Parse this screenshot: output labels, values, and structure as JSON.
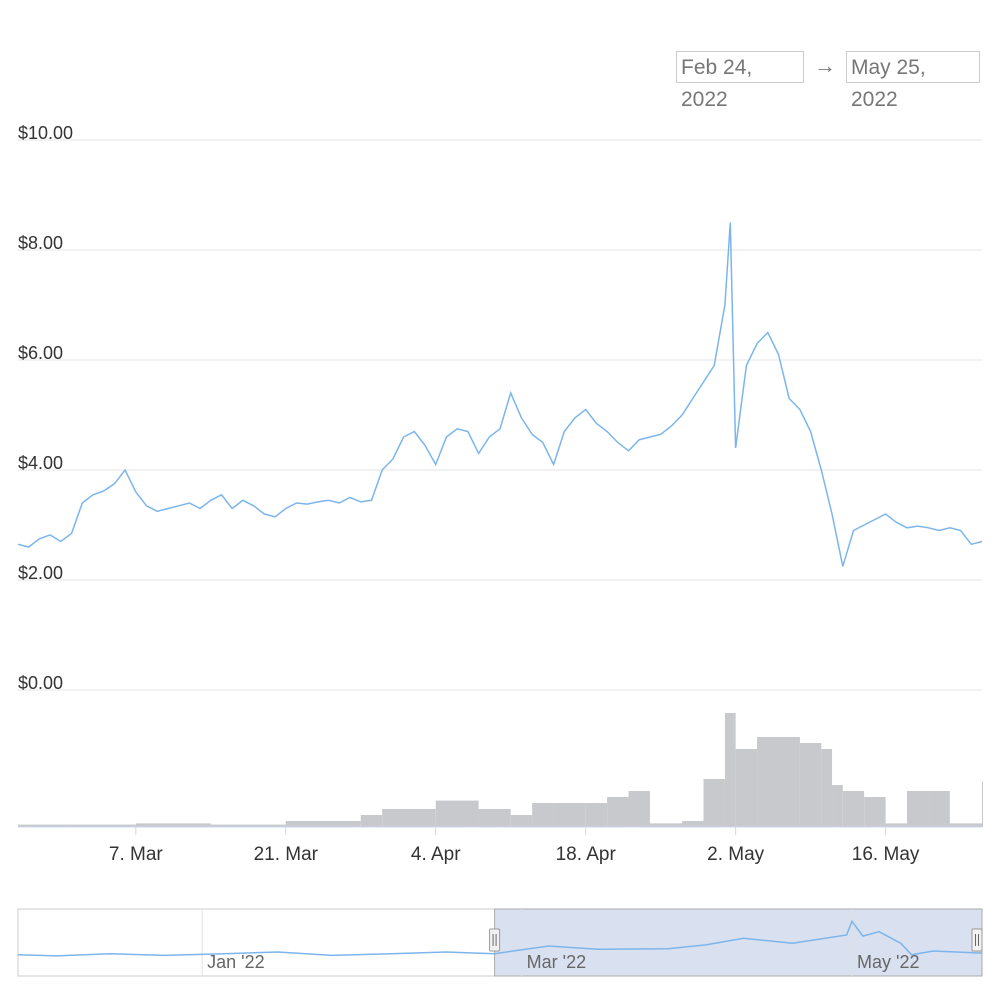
{
  "range": {
    "from": "Feb 24, 2022",
    "arrow": "→",
    "to": "May 25, 2022"
  },
  "colors": {
    "line": "#7cb5ec",
    "volume": "#c8c9cc",
    "grid": "#e6e6e6",
    "navigator_fill": "#ccd6eb"
  },
  "chart_data": {
    "type": "line",
    "title": "",
    "xlabel": "",
    "ylabel": "",
    "ylim": [
      0,
      10
    ],
    "y_ticks": [
      {
        "value": 10,
        "label": "$10.00"
      },
      {
        "value": 8,
        "label": "$8.00"
      },
      {
        "value": 6,
        "label": "$6.00"
      },
      {
        "value": 4,
        "label": "$4.00"
      },
      {
        "value": 2,
        "label": "$2.00"
      },
      {
        "value": 0,
        "label": "$0.00"
      }
    ],
    "x_range": [
      "2022-02-24",
      "2022-05-25"
    ],
    "x_ticks": [
      {
        "date": "2022-03-07",
        "label": "7. Mar"
      },
      {
        "date": "2022-03-21",
        "label": "21. Mar"
      },
      {
        "date": "2022-04-04",
        "label": "4. Apr"
      },
      {
        "date": "2022-04-18",
        "label": "18. Apr"
      },
      {
        "date": "2022-05-02",
        "label": "2. May"
      },
      {
        "date": "2022-05-16",
        "label": "16. May"
      }
    ],
    "series": [
      {
        "type": "line",
        "points": [
          [
            "2022-02-24",
            2.65
          ],
          [
            "2022-02-25",
            2.6
          ],
          [
            "2022-02-26",
            2.75
          ],
          [
            "2022-02-27",
            2.82
          ],
          [
            "2022-02-28",
            2.7
          ],
          [
            "2022-03-01",
            2.85
          ],
          [
            "2022-03-02",
            3.4
          ],
          [
            "2022-03-03",
            3.55
          ],
          [
            "2022-03-04",
            3.62
          ],
          [
            "2022-03-05",
            3.75
          ],
          [
            "2022-03-06",
            4.0
          ],
          [
            "2022-03-07",
            3.6
          ],
          [
            "2022-03-08",
            3.35
          ],
          [
            "2022-03-09",
            3.25
          ],
          [
            "2022-03-10",
            3.3
          ],
          [
            "2022-03-11",
            3.35
          ],
          [
            "2022-03-12",
            3.4
          ],
          [
            "2022-03-13",
            3.3
          ],
          [
            "2022-03-14",
            3.45
          ],
          [
            "2022-03-15",
            3.55
          ],
          [
            "2022-03-16",
            3.3
          ],
          [
            "2022-03-17",
            3.45
          ],
          [
            "2022-03-18",
            3.35
          ],
          [
            "2022-03-19",
            3.2
          ],
          [
            "2022-03-20",
            3.15
          ],
          [
            "2022-03-21",
            3.3
          ],
          [
            "2022-03-22",
            3.4
          ],
          [
            "2022-03-23",
            3.38
          ],
          [
            "2022-03-24",
            3.42
          ],
          [
            "2022-03-25",
            3.45
          ],
          [
            "2022-03-26",
            3.4
          ],
          [
            "2022-03-27",
            3.5
          ],
          [
            "2022-03-28",
            3.42
          ],
          [
            "2022-03-29",
            3.45
          ],
          [
            "2022-03-30",
            4.0
          ],
          [
            "2022-03-31",
            4.2
          ],
          [
            "2022-04-01",
            4.6
          ],
          [
            "2022-04-02",
            4.7
          ],
          [
            "2022-04-03",
            4.45
          ],
          [
            "2022-04-04",
            4.1
          ],
          [
            "2022-04-05",
            4.6
          ],
          [
            "2022-04-06",
            4.75
          ],
          [
            "2022-04-07",
            4.7
          ],
          [
            "2022-04-08",
            4.3
          ],
          [
            "2022-04-09",
            4.6
          ],
          [
            "2022-04-10",
            4.75
          ],
          [
            "2022-04-11",
            5.4
          ],
          [
            "2022-04-12",
            4.95
          ],
          [
            "2022-04-13",
            4.65
          ],
          [
            "2022-04-14",
            4.5
          ],
          [
            "2022-04-15",
            4.1
          ],
          [
            "2022-04-16",
            4.7
          ],
          [
            "2022-04-17",
            4.95
          ],
          [
            "2022-04-18",
            5.1
          ],
          [
            "2022-04-19",
            4.85
          ],
          [
            "2022-04-20",
            4.7
          ],
          [
            "2022-04-21",
            4.5
          ],
          [
            "2022-04-22",
            4.35
          ],
          [
            "2022-04-23",
            4.55
          ],
          [
            "2022-04-24",
            4.6
          ],
          [
            "2022-04-25",
            4.65
          ],
          [
            "2022-04-26",
            4.8
          ],
          [
            "2022-04-27",
            5.0
          ],
          [
            "2022-04-28",
            5.3
          ],
          [
            "2022-04-29",
            5.6
          ],
          [
            "2022-04-30",
            5.9
          ],
          [
            "2022-05-01",
            7.0
          ],
          [
            "2022-05-01T12:00",
            8.5
          ],
          [
            "2022-05-02",
            4.4
          ],
          [
            "2022-05-03",
            5.9
          ],
          [
            "2022-05-04",
            6.3
          ],
          [
            "2022-05-05",
            6.5
          ],
          [
            "2022-05-06",
            6.1
          ],
          [
            "2022-05-07",
            5.3
          ],
          [
            "2022-05-08",
            5.1
          ],
          [
            "2022-05-09",
            4.7
          ],
          [
            "2022-05-10",
            4.0
          ],
          [
            "2022-05-11",
            3.2
          ],
          [
            "2022-05-12",
            2.25
          ],
          [
            "2022-05-13",
            2.9
          ],
          [
            "2022-05-14",
            3.0
          ],
          [
            "2022-05-15",
            3.1
          ],
          [
            "2022-05-16",
            3.2
          ],
          [
            "2022-05-17",
            3.05
          ],
          [
            "2022-05-18",
            2.95
          ],
          [
            "2022-05-19",
            2.98
          ],
          [
            "2022-05-20",
            2.95
          ],
          [
            "2022-05-21",
            2.9
          ],
          [
            "2022-05-22",
            2.95
          ],
          [
            "2022-05-23",
            2.9
          ],
          [
            "2022-05-24",
            2.65
          ],
          [
            "2022-05-25",
            2.7
          ]
        ]
      },
      {
        "type": "volume",
        "points": [
          [
            "2022-02-24",
            0.02
          ],
          [
            "2022-03-01",
            0.02
          ],
          [
            "2022-03-07",
            0.03
          ],
          [
            "2022-03-14",
            0.02
          ],
          [
            "2022-03-21",
            0.05
          ],
          [
            "2022-03-28",
            0.1
          ],
          [
            "2022-03-30",
            0.15
          ],
          [
            "2022-04-04",
            0.22
          ],
          [
            "2022-04-08",
            0.15
          ],
          [
            "2022-04-11",
            0.1
          ],
          [
            "2022-04-13",
            0.2
          ],
          [
            "2022-04-15",
            0.2
          ],
          [
            "2022-04-18",
            0.2
          ],
          [
            "2022-04-20",
            0.25
          ],
          [
            "2022-04-22",
            0.3
          ],
          [
            "2022-04-24",
            0.03
          ],
          [
            "2022-04-27",
            0.05
          ],
          [
            "2022-04-29",
            0.4
          ],
          [
            "2022-05-01",
            0.95
          ],
          [
            "2022-05-02",
            0.65
          ],
          [
            "2022-05-04",
            0.75
          ],
          [
            "2022-05-06",
            0.75
          ],
          [
            "2022-05-08",
            0.7
          ],
          [
            "2022-05-10",
            0.65
          ],
          [
            "2022-05-11",
            0.35
          ],
          [
            "2022-05-12",
            0.3
          ],
          [
            "2022-05-14",
            0.25
          ],
          [
            "2022-05-16",
            0.03
          ],
          [
            "2022-05-18",
            0.3
          ],
          [
            "2022-05-20",
            0.3
          ],
          [
            "2022-05-22",
            0.03
          ],
          [
            "2022-05-25",
            0.38
          ]
        ]
      }
    ],
    "navigator": {
      "x_ticks": [
        {
          "date": "2022-01-01",
          "label": "Jan '22"
        },
        {
          "date": "2022-03-01",
          "label": "Mar '22"
        },
        {
          "date": "2022-05-01",
          "label": "May '22"
        }
      ],
      "selected": [
        "2022-02-24",
        "2022-05-25"
      ],
      "points": [
        [
          "2021-11-28",
          2.4
        ],
        [
          "2021-12-05",
          2.2
        ],
        [
          "2021-12-15",
          2.6
        ],
        [
          "2021-12-25",
          2.3
        ],
        [
          "2022-01-05",
          2.6
        ],
        [
          "2022-01-15",
          2.9
        ],
        [
          "2022-01-25",
          2.3
        ],
        [
          "2022-02-05",
          2.6
        ],
        [
          "2022-02-15",
          2.9
        ],
        [
          "2022-02-24",
          2.6
        ],
        [
          "2022-03-06",
          4.0
        ],
        [
          "2022-03-15",
          3.4
        ],
        [
          "2022-03-28",
          3.5
        ],
        [
          "2022-04-04",
          4.2
        ],
        [
          "2022-04-11",
          5.4
        ],
        [
          "2022-04-20",
          4.5
        ],
        [
          "2022-04-30",
          6.0
        ],
        [
          "2022-05-01",
          8.5
        ],
        [
          "2022-05-03",
          5.8
        ],
        [
          "2022-05-06",
          6.6
        ],
        [
          "2022-05-10",
          4.5
        ],
        [
          "2022-05-12",
          2.4
        ],
        [
          "2022-05-16",
          3.1
        ],
        [
          "2022-05-25",
          2.7
        ]
      ]
    }
  }
}
